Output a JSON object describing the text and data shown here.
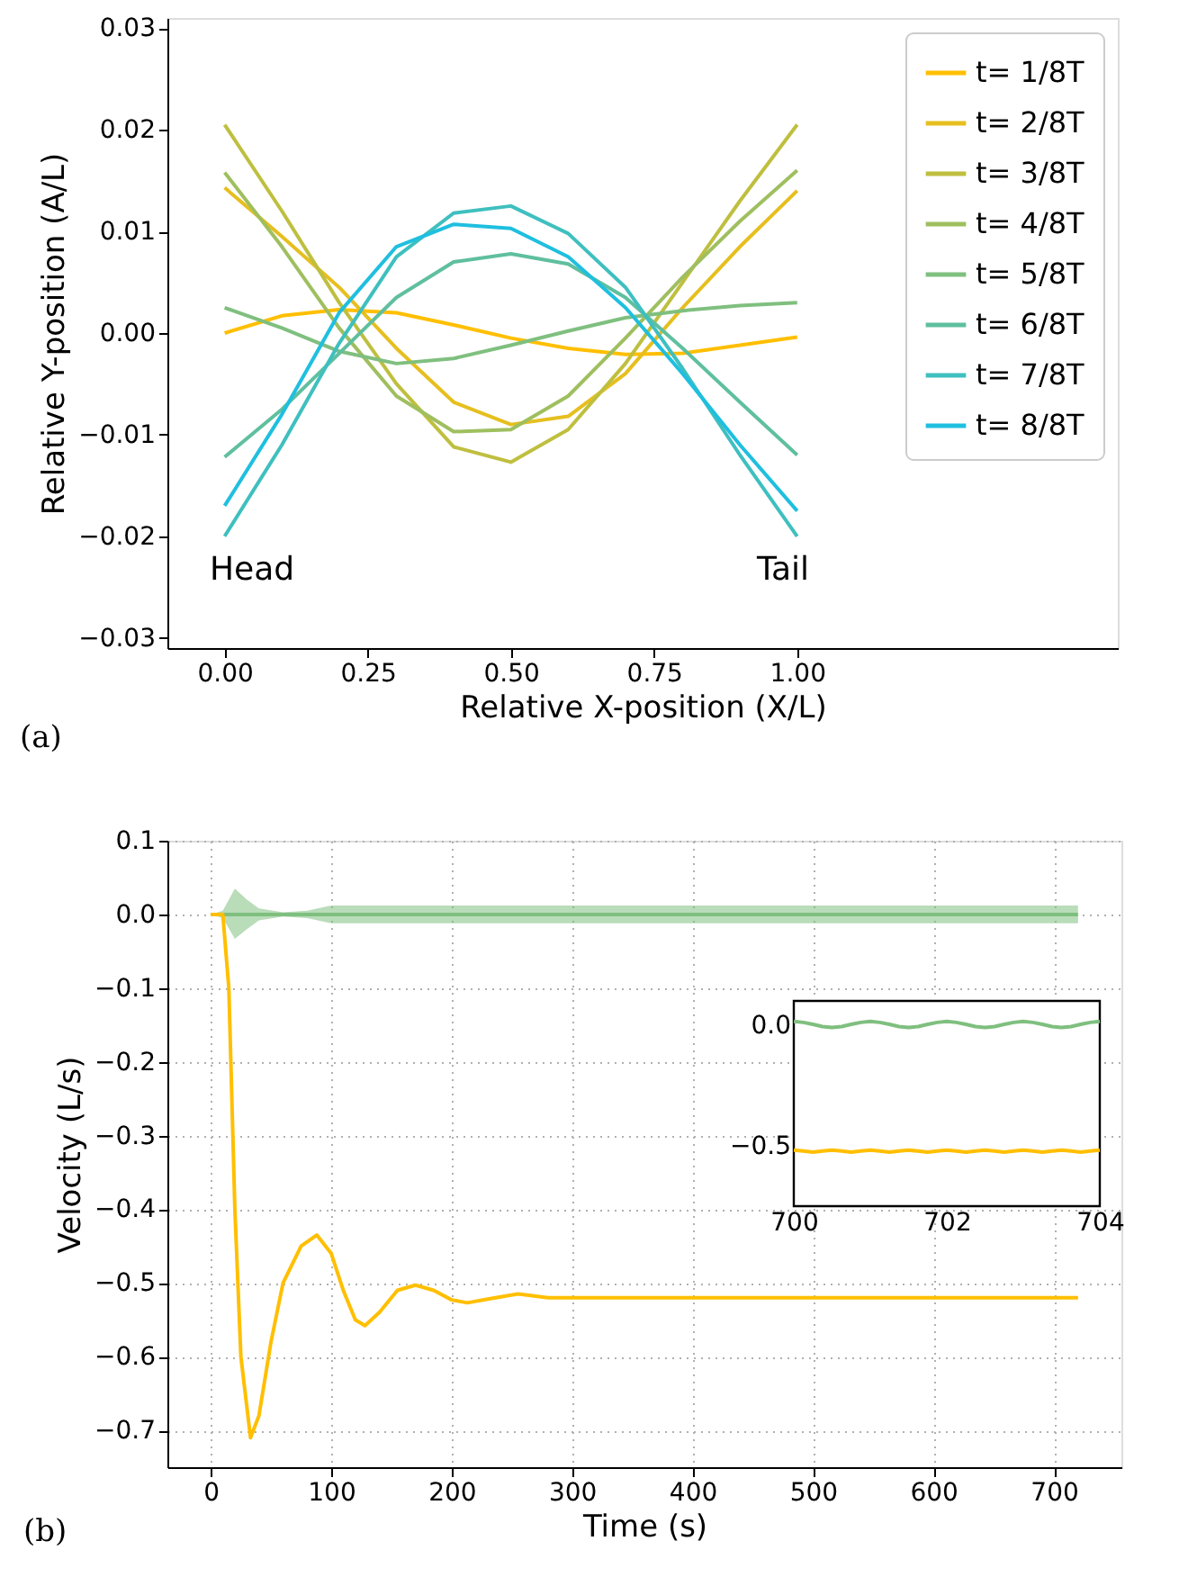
{
  "chart_data": [
    {
      "type": "line",
      "xlabel": "Relative X-position (X/L)",
      "ylabel": "Relative Y-position (A/L)",
      "x": [
        0,
        0.1,
        0.2,
        0.3,
        0.4,
        0.5,
        0.6,
        0.7,
        0.8,
        0.9,
        1.0
      ],
      "series": [
        {
          "name": "t= 1/8T",
          "color": "#ffbf00",
          "values": [
            0.0,
            0.0017,
            0.0023,
            0.002,
            0.0008,
            -0.0005,
            -0.0015,
            -0.0021,
            -0.002,
            -0.0012,
            -0.0004
          ]
        },
        {
          "name": "t= 2/8T",
          "color": "#e6bf1f",
          "values": [
            0.0143,
            0.0095,
            0.0045,
            -0.0015,
            -0.0068,
            -0.009,
            -0.0082,
            -0.004,
            0.0025,
            0.0085,
            0.014
          ]
        },
        {
          "name": "t= 3/8T",
          "color": "#bfbf3f",
          "values": [
            0.0205,
            0.012,
            0.003,
            -0.005,
            -0.0112,
            -0.0127,
            -0.0095,
            -0.003,
            0.005,
            0.013,
            0.0205
          ]
        },
        {
          "name": "t= 4/8T",
          "color": "#9fbf5f",
          "values": [
            0.0158,
            0.0085,
            0.0005,
            -0.0062,
            -0.0097,
            -0.0095,
            -0.0062,
            -0.0005,
            0.0055,
            0.011,
            0.016
          ]
        },
        {
          "name": "t= 5/8T",
          "color": "#7fbf7f",
          "values": [
            0.0025,
            0.0005,
            -0.0018,
            -0.003,
            -0.0025,
            -0.0012,
            0.0002,
            0.0015,
            0.0022,
            0.0027,
            0.003
          ]
        },
        {
          "name": "t= 6/8T",
          "color": "#5fbf9f",
          "values": [
            -0.0122,
            -0.0075,
            -0.002,
            0.0035,
            0.007,
            0.0078,
            0.0068,
            0.0035,
            -0.0015,
            -0.0068,
            -0.012
          ]
        },
        {
          "name": "t= 7/8T",
          "color": "#3fbfbf",
          "values": [
            -0.02,
            -0.011,
            -0.001,
            0.0075,
            0.0118,
            0.0125,
            0.0098,
            0.0045,
            -0.0035,
            -0.012,
            -0.02
          ]
        },
        {
          "name": "t= 8/8T",
          "color": "#1fbfdf",
          "values": [
            -0.017,
            -0.008,
            0.002,
            0.0085,
            0.0107,
            0.0103,
            0.0075,
            0.0025,
            -0.004,
            -0.011,
            -0.0175
          ]
        }
      ],
      "xlim": [
        -0.1,
        1.56
      ],
      "ylim": [
        -0.031,
        0.031
      ],
      "xticks": [
        {
          "value": 0,
          "label": "0.00"
        },
        {
          "value": 0.25,
          "label": "0.25"
        },
        {
          "value": 0.5,
          "label": "0.50"
        },
        {
          "value": 0.75,
          "label": "0.75"
        },
        {
          "value": 1,
          "label": "1.00"
        }
      ],
      "yticks": [
        {
          "value": -0.03,
          "label": "−0.03"
        },
        {
          "value": -0.02,
          "label": "−0.02"
        },
        {
          "value": -0.01,
          "label": "−0.01"
        },
        {
          "value": 0,
          "label": "0.00"
        },
        {
          "value": 0.01,
          "label": "0.01"
        },
        {
          "value": 0.02,
          "label": "0.02"
        },
        {
          "value": 0.03,
          "label": "0.03"
        }
      ],
      "annotations": [
        "Head",
        "Tail",
        "(a)"
      ],
      "legend": "top right",
      "grid": false
    },
    {
      "type": "line",
      "xlabel": "Time (s)",
      "ylabel": "Velocity (L/s)",
      "series": [
        {
          "color": "#7fbf7f",
          "x": [
            0,
            10,
            20,
            30,
            40,
            60,
            80,
            100,
            200,
            300,
            400,
            500,
            600,
            720
          ],
          "values": [
            0,
            0,
            0,
            0,
            0,
            0,
            0,
            0,
            0,
            0,
            0,
            0,
            0,
            0
          ],
          "lower": [
            0,
            -0.005,
            -0.033,
            -0.02,
            -0.008,
            -0.003,
            -0.005,
            -0.012,
            -0.012,
            -0.012,
            -0.012,
            -0.012,
            -0.012,
            -0.012
          ],
          "upper": [
            0,
            0.005,
            0.035,
            0.02,
            0.008,
            0.003,
            0.005,
            0.012,
            0.012,
            0.012,
            0.012,
            0.012,
            0.012,
            0.012
          ]
        },
        {
          "color": "#ffbf00",
          "x": [
            0,
            10,
            15,
            20,
            25,
            33,
            40,
            50,
            60,
            75,
            88,
            100,
            110,
            120,
            128,
            140,
            155,
            170,
            185,
            200,
            213,
            230,
            255,
            280,
            300,
            400,
            500,
            600,
            720
          ],
          "values": [
            0,
            0,
            -0.1,
            -0.4,
            -0.6,
            -0.71,
            -0.68,
            -0.58,
            -0.5,
            -0.45,
            -0.435,
            -0.46,
            -0.51,
            -0.55,
            -0.558,
            -0.54,
            -0.51,
            -0.503,
            -0.51,
            -0.523,
            -0.527,
            -0.522,
            -0.515,
            -0.52,
            -0.52,
            -0.52,
            -0.52,
            -0.52,
            -0.52
          ]
        }
      ],
      "xlim": [
        -36,
        756
      ],
      "ylim": [
        -0.75,
        0.1
      ],
      "xticks": [
        0,
        100,
        200,
        300,
        400,
        500,
        600,
        700
      ],
      "yticks": [
        {
          "value": -0.7,
          "label": "−0.7"
        },
        {
          "value": -0.6,
          "label": "−0.6"
        },
        {
          "value": -0.5,
          "label": "−0.5"
        },
        {
          "value": -0.4,
          "label": "−0.4"
        },
        {
          "value": -0.3,
          "label": "−0.3"
        },
        {
          "value": -0.2,
          "label": "−0.2"
        },
        {
          "value": -0.1,
          "label": "−0.1"
        },
        {
          "value": 0,
          "label": "0.0"
        },
        {
          "value": 0.1,
          "label": "0.1"
        }
      ],
      "annotations": [
        "(b)"
      ],
      "grid": true,
      "line_style": "solid"
    },
    {
      "type": "line",
      "x": [
        700,
        700.125,
        700.25,
        700.375,
        700.5,
        700.625,
        700.75,
        700.875,
        701,
        701.125,
        701.25,
        701.375,
        701.5,
        701.625,
        701.75,
        701.875,
        702,
        702.125,
        702.25,
        702.375,
        702.5,
        702.625,
        702.75,
        702.875,
        703,
        703.125,
        703.25,
        703.375,
        703.5,
        703.625,
        703.75,
        703.875,
        704
      ],
      "series": [
        {
          "color": "#7fbf7f",
          "values": [
            0.015,
            0.011,
            0.003,
            -0.006,
            -0.01,
            -0.006,
            0.003,
            0.011,
            0.015,
            0.011,
            0.003,
            -0.006,
            -0.01,
            -0.006,
            0.003,
            0.011,
            0.015,
            0.011,
            0.003,
            -0.006,
            -0.01,
            -0.006,
            0.003,
            0.011,
            0.015,
            0.011,
            0.003,
            -0.006,
            -0.01,
            -0.006,
            0.003,
            0.011,
            0.015
          ]
        },
        {
          "color": "#ffbf00",
          "values": [
            -0.518,
            -0.522,
            -0.526,
            -0.522,
            -0.518,
            -0.522,
            -0.526,
            -0.522,
            -0.518,
            -0.522,
            -0.526,
            -0.522,
            -0.518,
            -0.522,
            -0.526,
            -0.522,
            -0.518,
            -0.522,
            -0.526,
            -0.522,
            -0.518,
            -0.522,
            -0.526,
            -0.522,
            -0.518,
            -0.522,
            -0.526,
            -0.522,
            -0.518,
            -0.522,
            -0.526,
            -0.522,
            -0.518
          ]
        }
      ],
      "xlim": [
        700,
        704
      ],
      "ylim": [
        -0.75,
        0.1
      ],
      "xticks": [
        700,
        702,
        704
      ],
      "yticks": [
        {
          "value": -0.5,
          "label": "−0.5"
        },
        {
          "value": 0,
          "label": "0.0"
        }
      ],
      "grid": false
    }
  ]
}
